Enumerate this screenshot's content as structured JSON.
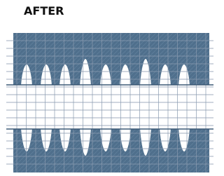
{
  "header": {
    "title": "AFTER"
  }
}
